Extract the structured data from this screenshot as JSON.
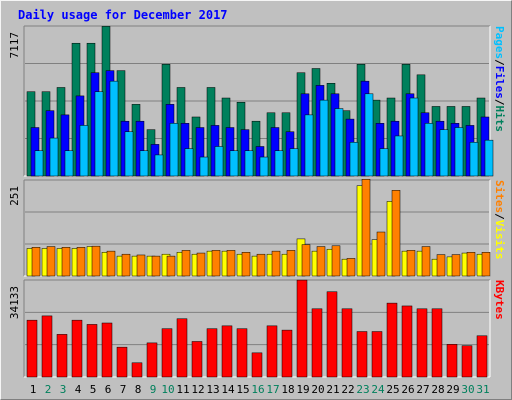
{
  "chart_data": {
    "type": "bar",
    "title": "Daily usage for December 2017",
    "categories": [
      "1",
      "2",
      "3",
      "4",
      "5",
      "6",
      "7",
      "8",
      "9",
      "10",
      "11",
      "12",
      "13",
      "14",
      "15",
      "16",
      "17",
      "18",
      "19",
      "20",
      "21",
      "22",
      "23",
      "24",
      "25",
      "26",
      "27",
      "28",
      "29",
      "30",
      "31"
    ],
    "weekend_days": [
      "2",
      "3",
      "9",
      "10",
      "16",
      "17",
      "23",
      "24",
      "30",
      "31"
    ],
    "colors": {
      "hits": "#00805C",
      "files": "#0000FF",
      "pages": "#00C0FF",
      "visits": "#FFFF00",
      "sites": "#FF8000",
      "kbytes": "#FF0000",
      "title": "#0000FF",
      "weekday_label": "#000000",
      "weekend_label": "#00805C"
    },
    "panels": [
      {
        "id": "requests",
        "max_label": "7117",
        "ylim": [
          0,
          7117
        ],
        "legend": [
          {
            "text": "Pages",
            "color": "#00C0FF"
          },
          {
            "text": "/",
            "color": "#000000"
          },
          {
            "text": "Files",
            "color": "#0000FF"
          },
          {
            "text": "/",
            "color": "#000000"
          },
          {
            "text": "Hits",
            "color": "#00805C"
          }
        ],
        "series": [
          {
            "name": "Hits",
            "color": "#00805C",
            "values": [
              4000,
              4000,
              4200,
              6300,
              6300,
              7100,
              5000,
              3400,
              2200,
              5300,
              4200,
              2800,
              4200,
              3700,
              3500,
              2600,
              3000,
              3000,
              4900,
              5100,
              4400,
              3100,
              5300,
              3600,
              3700,
              5300,
              4800,
              3300,
              3300,
              3300,
              3700
            ]
          },
          {
            "name": "Files",
            "color": "#0000FF",
            "values": [
              2300,
              3100,
              2900,
              3800,
              4900,
              5000,
              2600,
              2600,
              1500,
              3400,
              2500,
              2300,
              2400,
              2300,
              2200,
              1400,
              2300,
              2100,
              3900,
              4300,
              3900,
              2700,
              4500,
              2500,
              2600,
              3900,
              3000,
              2600,
              2500,
              2400,
              2800
            ]
          },
          {
            "name": "Pages",
            "color": "#00C0FF",
            "values": [
              1200,
              1800,
              1200,
              2400,
              4000,
              4500,
              2100,
              1200,
              1000,
              2500,
              1300,
              900,
              1400,
              1200,
              1200,
              900,
              1200,
              1300,
              2900,
              3600,
              3200,
              1600,
              3900,
              1300,
              1900,
              3700,
              2500,
              2200,
              2300,
              1600,
              1700
            ]
          }
        ]
      },
      {
        "id": "visitors",
        "max_label": "251",
        "ylim": [
          0,
          251
        ],
        "legend": [
          {
            "text": "Sites",
            "color": "#FF8000"
          },
          {
            "text": "/",
            "color": "#000000"
          },
          {
            "text": "Visits",
            "color": "#FFFF00"
          }
        ],
        "series": [
          {
            "name": "Visits",
            "color": "#FFFF00",
            "values": [
              72,
              72,
              72,
              72,
              77,
              62,
              52,
              52,
              52,
              57,
              62,
              57,
              65,
              65,
              57,
              52,
              57,
              57,
              97,
              65,
              70,
              44,
              236,
              95,
              195,
              65,
              65,
              44,
              50,
              60,
              57
            ]
          },
          {
            "name": "Sites",
            "color": "#FF8000",
            "values": [
              75,
              77,
              75,
              75,
              78,
              65,
              57,
              55,
              52,
              52,
              67,
              60,
              67,
              67,
              62,
              57,
              65,
              67,
              82,
              77,
              79,
              46,
              253,
              115,
              224,
              67,
              77,
              56,
              56,
              62,
              62
            ]
          }
        ]
      },
      {
        "id": "traffic",
        "max_label": "34133",
        "ylim": [
          0,
          34133
        ],
        "legend": [
          {
            "text": "KBytes",
            "color": "#FF0000"
          }
        ],
        "series": [
          {
            "name": "KBytes",
            "color": "#FF0000",
            "values": [
              20000,
              21500,
              15000,
              20000,
              18500,
              19000,
              10500,
              5000,
              12000,
              17000,
              20500,
              12500,
              17000,
              18000,
              17000,
              8500,
              18000,
              16500,
              34100,
              24000,
              30000,
              24000,
              16000,
              16000,
              26000,
              25000,
              24000,
              24000,
              11500,
              11000,
              14500
            ]
          }
        ]
      }
    ]
  }
}
